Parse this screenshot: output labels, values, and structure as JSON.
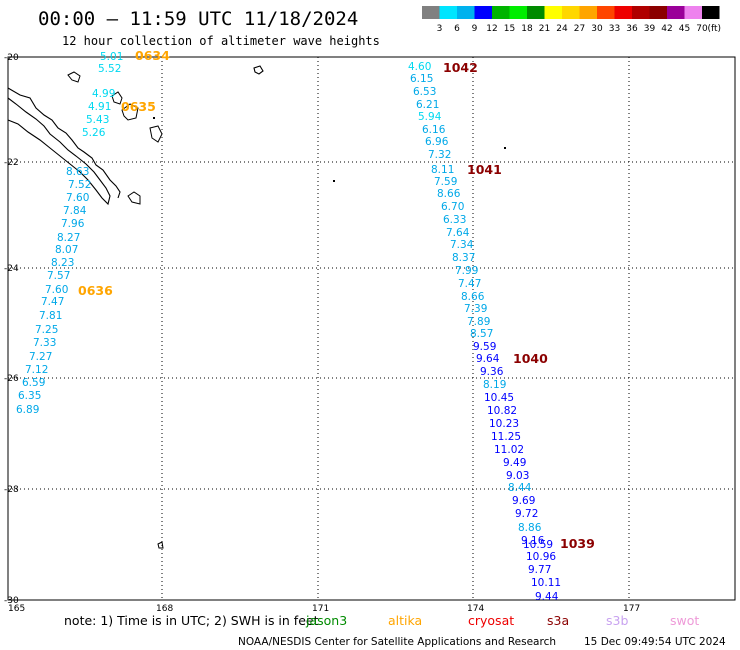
{
  "header": {
    "title": "00:00 — 11:59 UTC 11/18/2024",
    "subtitle": "12 hour collection of altimeter wave heights"
  },
  "legend": {
    "bins": [
      {
        "label": "",
        "color": "#808080"
      },
      {
        "label": "3",
        "color": "#00e5ff"
      },
      {
        "label": "6",
        "color": "#00b2ee"
      },
      {
        "label": "9",
        "color": "#0000ff"
      },
      {
        "label": "12",
        "color": "#00b400"
      },
      {
        "label": "15",
        "color": "#00ee00"
      },
      {
        "label": "18",
        "color": "#008b00"
      },
      {
        "label": "21",
        "color": "#ffff00"
      },
      {
        "label": "24",
        "color": "#ffd700"
      },
      {
        "label": "27",
        "color": "#ffa500"
      },
      {
        "label": "30",
        "color": "#ff4500"
      },
      {
        "label": "33",
        "color": "#ee0000"
      },
      {
        "label": "36",
        "color": "#b00000"
      },
      {
        "label": "39",
        "color": "#8b0000"
      },
      {
        "label": "42",
        "color": "#9a0099"
      },
      {
        "label": "45",
        "color": "#ee82ee"
      },
      {
        "label": "70",
        "color": "#000000"
      }
    ],
    "unit": "(ft)"
  },
  "map": {
    "lat_labels": [
      "-20",
      "-22",
      "-24",
      "-26",
      "-28",
      "-30"
    ],
    "lon_labels": [
      "165",
      "168",
      "171",
      "174",
      "177"
    ],
    "passes": [
      {
        "id": "0634",
        "color": "#ffa500"
      },
      {
        "id": "0635",
        "color": "#ffa500"
      },
      {
        "id": "0636",
        "color": "#ffa500"
      },
      {
        "id": "1042",
        "color": "#8b0000"
      },
      {
        "id": "1041",
        "color": "#8b0000"
      },
      {
        "id": "1040",
        "color": "#8b0000"
      },
      {
        "id": "1039",
        "color": "#8b0000"
      }
    ],
    "track_west": [
      "5.01",
      "5.52",
      "4.99",
      "4.91",
      "5.43",
      "5.26",
      "8.63",
      "7.52",
      "7.60",
      "7.84",
      "7.96",
      "8.27",
      "8.07",
      "8.23",
      "7.57",
      "7.60",
      "7.47",
      "7.81",
      "7.25",
      "7.33",
      "7.27",
      "7.12",
      "6.59",
      "6.35",
      "6.89"
    ],
    "track_east": [
      "4.60",
      "6.15",
      "6.53",
      "6.21",
      "5.94",
      "6.16",
      "6.96",
      "7.32",
      "8.11",
      "7.59",
      "8.66",
      "6.70",
      "6.33",
      "7.64",
      "7.34",
      "8.37",
      "7.99",
      "7.47",
      "8.66",
      "7.39",
      "7.89",
      "8.57",
      "9.59",
      "9.64",
      "9.36",
      "8.19",
      "10.45",
      "10.82",
      "10.23",
      "11.25",
      "11.02",
      "9.49",
      "9.03",
      "8.44",
      "9.69",
      "9.72",
      "8.86",
      "9.16",
      "10.59",
      "10.96",
      "9.77",
      "10.11",
      "9.44"
    ]
  },
  "footer": {
    "note": "note: 1) Time is in UTC; 2) SWH is in feet",
    "satellites": [
      {
        "name": "jason3",
        "color": "#008b00"
      },
      {
        "name": "altika",
        "color": "#ffa500"
      },
      {
        "name": "cryosat",
        "color": "#ee0000"
      },
      {
        "name": "s3a",
        "color": "#8b0000"
      },
      {
        "name": "s3b",
        "color": "#c8a2f0"
      },
      {
        "name": "swot",
        "color": "#ee9ad8"
      }
    ],
    "credit": "NOAA/NESDIS Center for Satellite Applications and Research",
    "timestamp": "15 Dec 09:49:54 UTC 2024"
  }
}
